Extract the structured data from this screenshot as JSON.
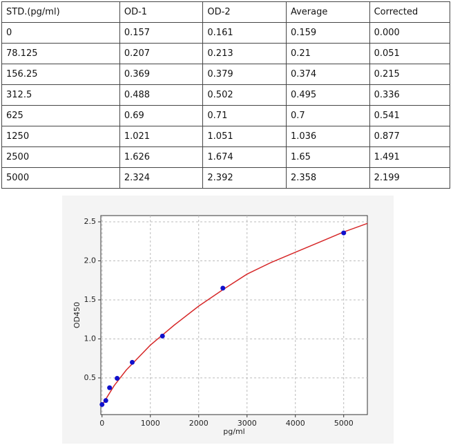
{
  "table": {
    "header": [
      "STD.(pg/ml)",
      "OD-1",
      "OD-2",
      "Average",
      "Corrected"
    ],
    "rows": [
      [
        "0",
        "0.157",
        "0.161",
        "0.159",
        "0.000"
      ],
      [
        "78.125",
        "0.207",
        "0.213",
        "0.21",
        "0.051"
      ],
      [
        "156.25",
        "0.369",
        "0.379",
        "0.374",
        "0.215"
      ],
      [
        "312.5",
        "0.488",
        "0.502",
        "0.495",
        "0.336"
      ],
      [
        "625",
        "0.69",
        "0.71",
        "0.7",
        "0.541"
      ],
      [
        "1250",
        "1.021",
        "1.051",
        "1.036",
        "0.877"
      ],
      [
        "2500",
        "1.626",
        "1.674",
        "1.65",
        "1.491"
      ],
      [
        "5000",
        "2.324",
        "2.392",
        "2.358",
        "2.199"
      ]
    ]
  },
  "chart_data": {
    "type": "scatter",
    "x_label": "pg/ml",
    "y_label": "OD450",
    "series": [
      {
        "color": "#1010cc",
        "x": [
          0,
          78.125,
          156.25,
          312.5,
          625,
          1250,
          2500,
          5000
        ],
        "values": [
          0.159,
          0.21,
          0.374,
          0.495,
          0.7,
          1.036,
          1.65,
          2.358
        ]
      },
      {
        "type": "line",
        "color": "#d62728",
        "x": [
          0,
          250,
          500,
          1000,
          1500,
          2000,
          2500,
          3000,
          3500,
          4000,
          4500,
          5000,
          5490
        ],
        "values": [
          0.15,
          0.4,
          0.6,
          0.92,
          1.18,
          1.42,
          1.63,
          1.83,
          1.98,
          2.11,
          2.24,
          2.37,
          2.48
        ]
      }
    ],
    "xlim": [
      -25,
      5490
    ],
    "ylim": [
      0.03,
      2.58
    ],
    "xticks": [
      0,
      1000,
      2000,
      3000,
      4000,
      5000
    ],
    "yticks": [
      0.5,
      {
        "value": 1,
        "label": "1.0"
      },
      1.5,
      {
        "value": 2,
        "label": "2.0"
      },
      2.5
    ],
    "grid": true
  }
}
